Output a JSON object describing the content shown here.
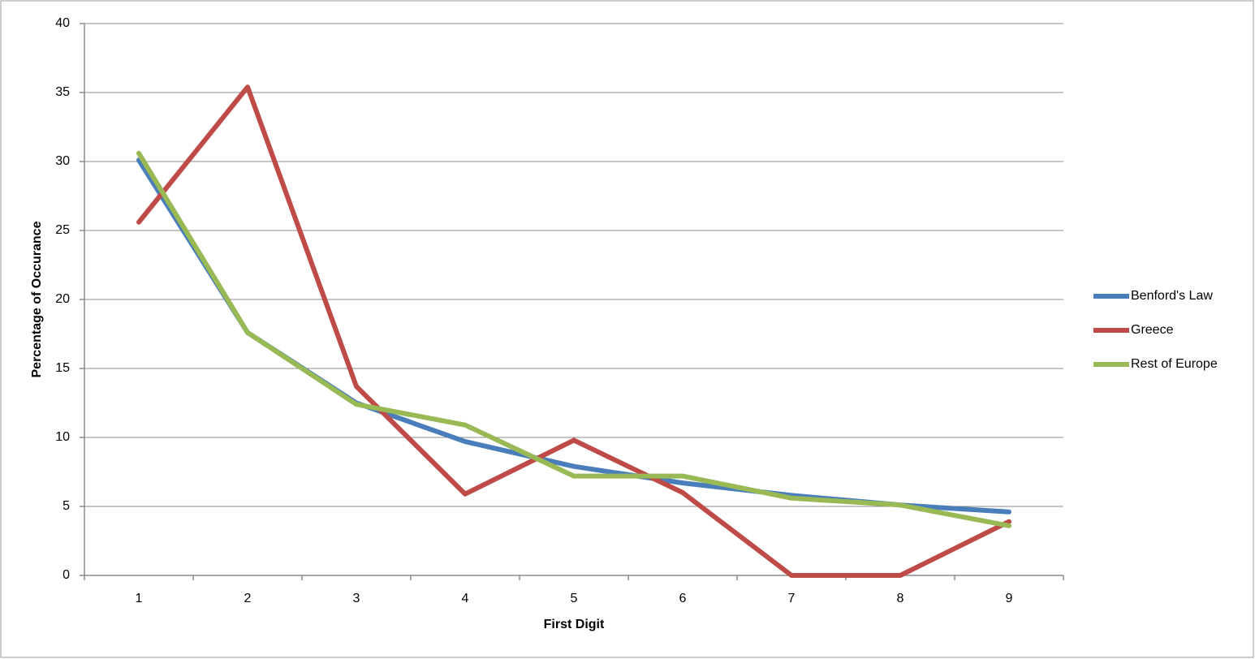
{
  "chart_data": {
    "type": "line",
    "x_label": "First Digit",
    "y_label": "Percentage of Occurance",
    "categories": [
      "1",
      "2",
      "3",
      "4",
      "5",
      "6",
      "7",
      "8",
      "9"
    ],
    "series": [
      {
        "name": "Benford's Law",
        "color": "#4a7ebb",
        "values": [
          30.1,
          17.6,
          12.5,
          9.7,
          7.9,
          6.7,
          5.8,
          5.1,
          4.6
        ]
      },
      {
        "name": "Greece",
        "color": "#be4b48",
        "values": [
          25.6,
          35.4,
          13.7,
          5.9,
          9.8,
          6.0,
          0,
          0,
          3.9
        ]
      },
      {
        "name": "Rest of Europe",
        "color": "#98b954",
        "values": [
          30.6,
          17.6,
          12.4,
          10.9,
          7.2,
          7.2,
          5.6,
          5.1,
          3.6
        ]
      }
    ],
    "ylim": [
      0,
      40
    ],
    "yticks": [
      0,
      5,
      10,
      15,
      20,
      25,
      30,
      35,
      40
    ],
    "grid": true,
    "legend": "right"
  }
}
